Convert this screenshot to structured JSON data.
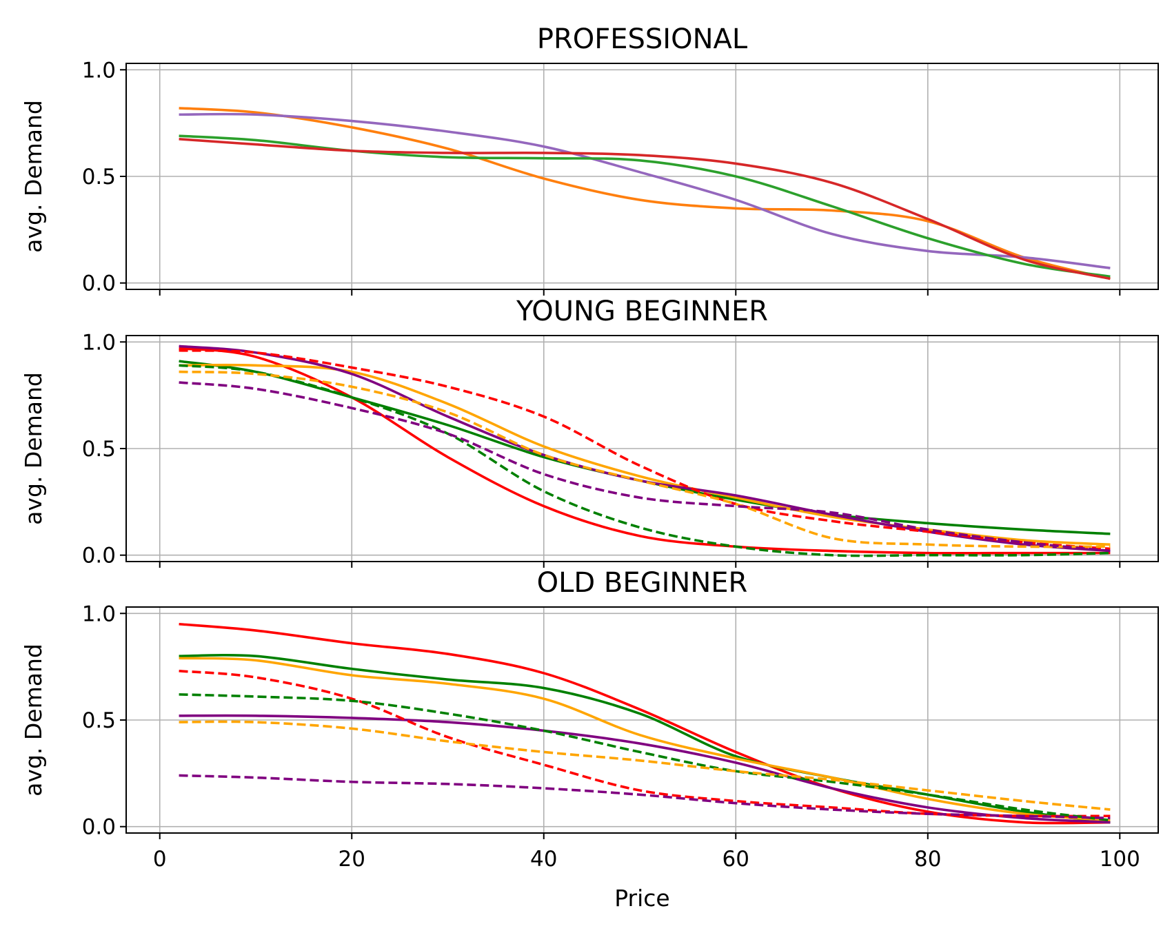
{
  "chart_data": [
    {
      "type": "line",
      "title": "PROFESSIONAL",
      "ylabel": "avg. Demand",
      "xlabel": "",
      "xlim": [
        -3.5,
        104
      ],
      "ylim": [
        -0.03,
        1.03
      ],
      "yticks": [
        "0.0",
        "0.5",
        "1.0"
      ],
      "xticks": [
        "0",
        "20",
        "40",
        "60",
        "80",
        "100"
      ],
      "show_xtick_labels": false,
      "grid": true,
      "series": [
        {
          "color": "#ff7f0e",
          "dash": false,
          "x": [
            2,
            10,
            20,
            30,
            40,
            50,
            60,
            70,
            80,
            90,
            99
          ],
          "values": [
            0.82,
            0.8,
            0.73,
            0.63,
            0.49,
            0.39,
            0.35,
            0.34,
            0.29,
            0.12,
            0.02
          ]
        },
        {
          "color": "#9467bd",
          "dash": false,
          "x": [
            2,
            10,
            20,
            30,
            40,
            50,
            60,
            70,
            80,
            90,
            99
          ],
          "values": [
            0.79,
            0.79,
            0.76,
            0.71,
            0.64,
            0.52,
            0.39,
            0.23,
            0.15,
            0.12,
            0.07
          ]
        },
        {
          "color": "#2ca02c",
          "dash": false,
          "x": [
            2,
            10,
            20,
            30,
            40,
            50,
            60,
            70,
            80,
            90,
            99
          ],
          "values": [
            0.69,
            0.67,
            0.62,
            0.59,
            0.585,
            0.575,
            0.5,
            0.36,
            0.21,
            0.09,
            0.03
          ]
        },
        {
          "color": "#d62728",
          "dash": false,
          "x": [
            2,
            10,
            20,
            30,
            40,
            50,
            60,
            70,
            80,
            90,
            99
          ],
          "values": [
            0.675,
            0.65,
            0.62,
            0.61,
            0.61,
            0.6,
            0.56,
            0.47,
            0.3,
            0.11,
            0.02
          ]
        }
      ]
    },
    {
      "type": "line",
      "title": "YOUNG BEGINNER",
      "ylabel": "avg. Demand",
      "xlabel": "",
      "xlim": [
        -3.5,
        104
      ],
      "ylim": [
        -0.03,
        1.03
      ],
      "yticks": [
        "0.0",
        "0.5",
        "1.0"
      ],
      "xticks": [
        "0",
        "20",
        "40",
        "60",
        "80",
        "100"
      ],
      "show_xtick_labels": false,
      "grid": true,
      "series": [
        {
          "color": "#ff0000",
          "dash": false,
          "x": [
            2,
            10,
            20,
            30,
            40,
            50,
            60,
            70,
            80,
            90,
            99
          ],
          "values": [
            0.97,
            0.93,
            0.74,
            0.46,
            0.23,
            0.09,
            0.04,
            0.02,
            0.01,
            0.01,
            0.01
          ]
        },
        {
          "color": "#008000",
          "dash": false,
          "x": [
            2,
            10,
            20,
            30,
            40,
            50,
            60,
            70,
            80,
            90,
            99
          ],
          "values": [
            0.91,
            0.86,
            0.74,
            0.61,
            0.46,
            0.35,
            0.26,
            0.19,
            0.15,
            0.12,
            0.1
          ]
        },
        {
          "color": "#ffa500",
          "dash": false,
          "x": [
            2,
            10,
            20,
            30,
            40,
            50,
            60,
            70,
            80,
            90,
            99
          ],
          "values": [
            0.89,
            0.89,
            0.86,
            0.71,
            0.51,
            0.37,
            0.27,
            0.18,
            0.12,
            0.07,
            0.05
          ]
        },
        {
          "color": "#800080",
          "dash": false,
          "x": [
            2,
            10,
            20,
            30,
            40,
            50,
            60,
            70,
            80,
            90,
            99
          ],
          "values": [
            0.98,
            0.95,
            0.85,
            0.65,
            0.47,
            0.35,
            0.28,
            0.19,
            0.11,
            0.05,
            0.02
          ]
        },
        {
          "color": "#ff0000",
          "dash": true,
          "x": [
            2,
            10,
            20,
            30,
            40,
            50,
            60,
            70,
            80,
            90,
            99
          ],
          "values": [
            0.96,
            0.95,
            0.88,
            0.79,
            0.65,
            0.42,
            0.24,
            0.16,
            0.11,
            0.06,
            0.03
          ]
        },
        {
          "color": "#008000",
          "dash": true,
          "x": [
            2,
            10,
            20,
            30,
            40,
            50,
            60,
            70,
            80,
            90,
            99
          ],
          "values": [
            0.89,
            0.86,
            0.74,
            0.57,
            0.3,
            0.13,
            0.04,
            0.0,
            0.0,
            0.0,
            0.01
          ]
        },
        {
          "color": "#ffa500",
          "dash": true,
          "x": [
            2,
            10,
            20,
            30,
            40,
            50,
            60,
            70,
            80,
            90,
            99
          ],
          "values": [
            0.86,
            0.85,
            0.79,
            0.67,
            0.47,
            0.35,
            0.24,
            0.08,
            0.05,
            0.04,
            0.04
          ]
        },
        {
          "color": "#800080",
          "dash": true,
          "x": [
            2,
            10,
            20,
            30,
            40,
            50,
            60,
            70,
            80,
            90,
            99
          ],
          "values": [
            0.81,
            0.78,
            0.69,
            0.57,
            0.38,
            0.27,
            0.23,
            0.2,
            0.12,
            0.06,
            0.02
          ]
        }
      ]
    },
    {
      "type": "line",
      "title": "OLD BEGINNER",
      "ylabel": "avg. Demand",
      "xlabel": "Price",
      "xlim": [
        -3.5,
        104
      ],
      "ylim": [
        -0.03,
        1.03
      ],
      "yticks": [
        "0.0",
        "0.5",
        "1.0"
      ],
      "xticks": [
        "0",
        "20",
        "40",
        "60",
        "80",
        "100"
      ],
      "show_xtick_labels": true,
      "grid": true,
      "series": [
        {
          "color": "#ff0000",
          "dash": false,
          "x": [
            2,
            10,
            20,
            30,
            40,
            50,
            60,
            70,
            80,
            90,
            99
          ],
          "values": [
            0.95,
            0.92,
            0.86,
            0.81,
            0.72,
            0.55,
            0.35,
            0.18,
            0.07,
            0.02,
            0.02
          ]
        },
        {
          "color": "#008000",
          "dash": false,
          "x": [
            2,
            10,
            20,
            30,
            40,
            50,
            60,
            70,
            80,
            90,
            99
          ],
          "values": [
            0.8,
            0.8,
            0.74,
            0.69,
            0.65,
            0.53,
            0.33,
            0.23,
            0.15,
            0.07,
            0.02
          ]
        },
        {
          "color": "#ffa500",
          "dash": false,
          "x": [
            2,
            10,
            20,
            30,
            40,
            50,
            60,
            70,
            80,
            90,
            99
          ],
          "values": [
            0.79,
            0.78,
            0.71,
            0.67,
            0.6,
            0.43,
            0.32,
            0.23,
            0.13,
            0.06,
            0.03
          ]
        },
        {
          "color": "#800080",
          "dash": false,
          "x": [
            2,
            10,
            20,
            30,
            40,
            50,
            60,
            70,
            80,
            90,
            99
          ],
          "values": [
            0.52,
            0.52,
            0.51,
            0.49,
            0.45,
            0.39,
            0.3,
            0.18,
            0.09,
            0.04,
            0.02
          ]
        },
        {
          "color": "#ff0000",
          "dash": true,
          "x": [
            2,
            10,
            20,
            30,
            40,
            50,
            60,
            70,
            80,
            90,
            99
          ],
          "values": [
            0.73,
            0.7,
            0.6,
            0.42,
            0.29,
            0.17,
            0.12,
            0.09,
            0.06,
            0.05,
            0.05
          ]
        },
        {
          "color": "#008000",
          "dash": true,
          "x": [
            2,
            10,
            20,
            30,
            40,
            50,
            60,
            70,
            80,
            90,
            99
          ],
          "values": [
            0.62,
            0.61,
            0.59,
            0.53,
            0.45,
            0.35,
            0.26,
            0.21,
            0.15,
            0.08,
            0.03
          ]
        },
        {
          "color": "#ffa500",
          "dash": true,
          "x": [
            2,
            10,
            20,
            30,
            40,
            50,
            60,
            70,
            80,
            90,
            99
          ],
          "values": [
            0.49,
            0.49,
            0.46,
            0.4,
            0.35,
            0.31,
            0.26,
            0.22,
            0.17,
            0.12,
            0.08
          ]
        },
        {
          "color": "#800080",
          "dash": true,
          "x": [
            2,
            10,
            20,
            30,
            40,
            50,
            60,
            70,
            80,
            90,
            99
          ],
          "values": [
            0.24,
            0.23,
            0.21,
            0.2,
            0.18,
            0.15,
            0.11,
            0.08,
            0.06,
            0.05,
            0.04
          ]
        }
      ]
    }
  ],
  "colors": {
    "grid": "#b0b0b0",
    "axes": "#000000",
    "background": "#ffffff"
  }
}
